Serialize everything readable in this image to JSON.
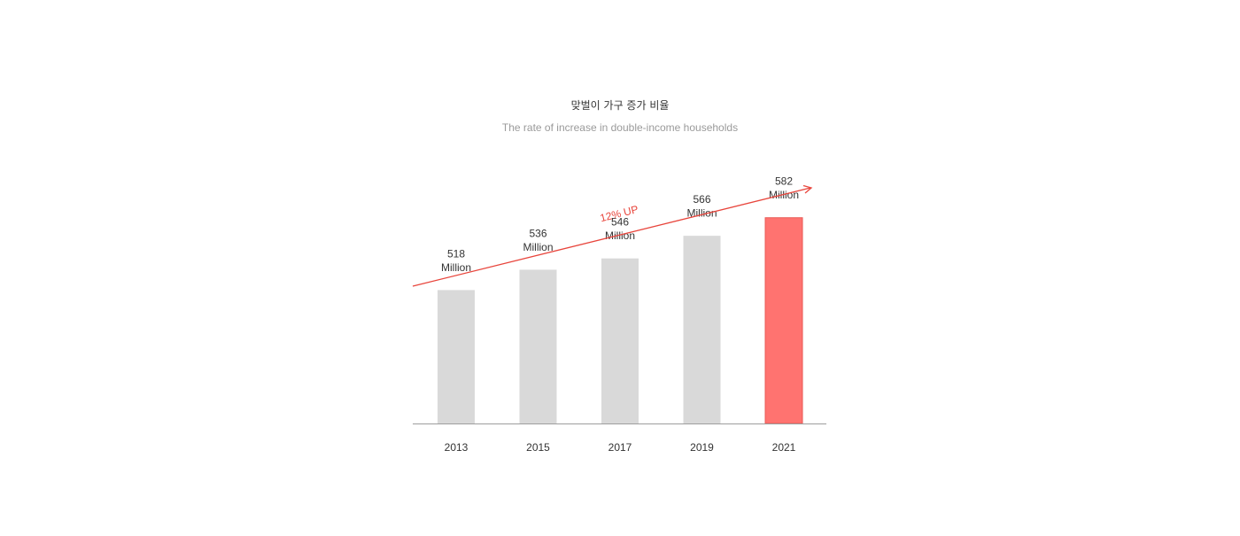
{
  "chart_data": {
    "type": "bar",
    "title": "맞벌이 가구 증가 비율",
    "subtitle": "The rate of increase in double-income households",
    "categories": [
      "2013",
      "2015",
      "2017",
      "2019",
      "2021"
    ],
    "values": [
      518,
      536,
      546,
      566,
      582
    ],
    "value_labels": [
      [
        "518",
        "Million"
      ],
      [
        "536",
        "Million"
      ],
      [
        "546",
        "Million"
      ],
      [
        "566",
        "Million"
      ],
      [
        "582",
        "Million"
      ]
    ],
    "annotation": "12% UP",
    "ylim": [
      400,
      610
    ],
    "grid": false,
    "colors": {
      "bar": "#d9d9d9",
      "highlight": "#ff7370",
      "highlight_border": "#e85a55",
      "trend": "#e8453c",
      "axis": "#9e9e9e"
    },
    "highlight_index": 4
  }
}
